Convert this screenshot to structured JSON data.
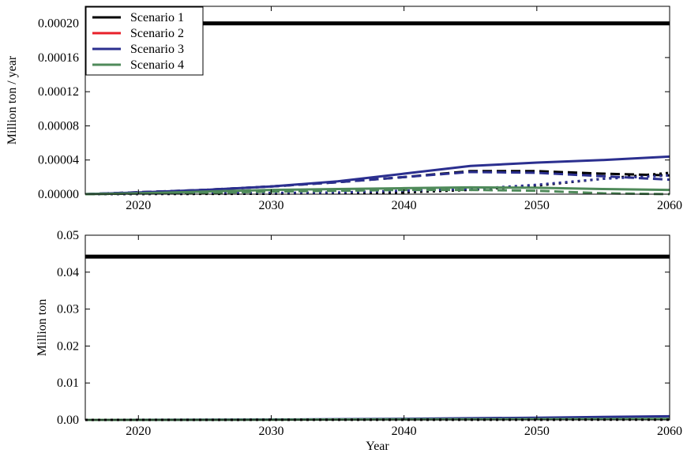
{
  "colors": {
    "scenario1": "#000000",
    "scenario2": "#e8202a",
    "scenario3": "#2b2f8f",
    "scenario4": "#4f8a5a",
    "axis": "#000000"
  },
  "chart_data": [
    {
      "type": "line",
      "ylabel": "Million ton / year",
      "xlabel": "",
      "xlim": [
        2016,
        2060
      ],
      "ylim": [
        0,
        0.00022
      ],
      "x_ticks": [
        2020,
        2030,
        2040,
        2050,
        2060
      ],
      "x_tick_labels": [
        "2020",
        "2030",
        "2040",
        "2050",
        "2060"
      ],
      "y_ticks": [
        0,
        4e-05,
        8e-05,
        0.00012,
        0.00016,
        0.0002
      ],
      "y_tick_labels": [
        "0.00000",
        "0.00004",
        "0.00008",
        "0.00012",
        "0.00016",
        "0.00020"
      ],
      "legend": {
        "position": "top-left",
        "entries": [
          {
            "label": "Scenario 1",
            "color_key": "scenario1"
          },
          {
            "label": "Scenario 2",
            "color_key": "scenario2"
          },
          {
            "label": "Scenario 3",
            "color_key": "scenario3"
          },
          {
            "label": "Scenario 4",
            "color_key": "scenario4"
          }
        ]
      },
      "series": [
        {
          "color_key": "scenario1",
          "style": "thick",
          "x": [
            2016,
            2060
          ],
          "y": [
            0.0002,
            0.0002
          ]
        },
        {
          "color_key": "scenario1",
          "style": "dashed",
          "x": [
            2016,
            2025,
            2030,
            2035,
            2040,
            2045,
            2050,
            2055,
            2060
          ],
          "y": [
            0,
            5e-06,
            9e-06,
            1.4e-05,
            2e-05,
            2.7e-05,
            2.7e-05,
            2.4e-05,
            2.2e-05
          ]
        },
        {
          "color_key": "scenario1",
          "style": "dotted",
          "x": [
            2016,
            2030,
            2040,
            2045,
            2050,
            2055,
            2060
          ],
          "y": [
            0,
            5e-07,
            2e-06,
            5e-06,
            1e-05,
            1.8e-05,
            2.5e-05
          ]
        },
        {
          "color_key": "scenario3",
          "style": "solid",
          "x": [
            2016,
            2020,
            2025,
            2030,
            2035,
            2040,
            2045,
            2050,
            2055,
            2060
          ],
          "y": [
            0,
            2e-06,
            5e-06,
            9e-06,
            1.5e-05,
            2.4e-05,
            3.3e-05,
            3.7e-05,
            4e-05,
            4.4e-05
          ]
        },
        {
          "color_key": "scenario3",
          "style": "dashed",
          "x": [
            2016,
            2025,
            2030,
            2035,
            2040,
            2045,
            2050,
            2055,
            2060
          ],
          "y": [
            0,
            5e-06,
            9e-06,
            1.4e-05,
            2e-05,
            2.6e-05,
            2.5e-05,
            2.1e-05,
            1.7e-05
          ]
        },
        {
          "color_key": "scenario3",
          "style": "dotted",
          "x": [
            2016,
            2035,
            2045,
            2050,
            2055,
            2060
          ],
          "y": [
            0,
            2e-06,
            6e-06,
            1.1e-05,
            1.8e-05,
            2.2e-05
          ]
        },
        {
          "color_key": "scenario4",
          "style": "solid",
          "x": [
            2016,
            2020,
            2025,
            2030,
            2035,
            2040,
            2045,
            2050,
            2055,
            2060
          ],
          "y": [
            0,
            1e-06,
            3e-06,
            5e-06,
            6e-06,
            7e-06,
            8e-06,
            7.5e-06,
            6e-06,
            5e-06
          ]
        },
        {
          "color_key": "scenario4",
          "style": "dashed",
          "x": [
            2016,
            2025,
            2030,
            2035,
            2040,
            2045,
            2050,
            2055,
            2060
          ],
          "y": [
            0,
            1.5e-06,
            3e-06,
            4e-06,
            5e-06,
            5e-06,
            4e-06,
            1e-06,
            0
          ]
        }
      ]
    },
    {
      "type": "line",
      "ylabel": "Million ton",
      "xlabel": "Year",
      "xlim": [
        2016,
        2060
      ],
      "ylim": [
        0,
        0.05
      ],
      "x_ticks": [
        2020,
        2030,
        2040,
        2050,
        2060
      ],
      "x_tick_labels": [
        "2020",
        "2030",
        "2040",
        "2050",
        "2060"
      ],
      "y_ticks": [
        0,
        0.01,
        0.02,
        0.03,
        0.04,
        0.05
      ],
      "y_tick_labels": [
        "0.00",
        "0.01",
        "0.02",
        "0.03",
        "0.04",
        "0.05"
      ],
      "series": [
        {
          "color_key": "scenario1",
          "style": "thick",
          "x": [
            2016,
            2060
          ],
          "y": [
            0.0442,
            0.0442
          ]
        },
        {
          "color_key": "scenario3",
          "style": "solid",
          "x": [
            2016,
            2030,
            2040,
            2050,
            2060
          ],
          "y": [
            0,
            0.0001,
            0.0003,
            0.0006,
            0.001
          ]
        },
        {
          "color_key": "scenario4",
          "style": "solid",
          "x": [
            2016,
            2030,
            2040,
            2050,
            2060
          ],
          "y": [
            0,
            5e-05,
            0.00015,
            0.0002,
            0.0003
          ]
        },
        {
          "color_key": "scenario1",
          "style": "dotted",
          "x": [
            2016,
            2060
          ],
          "y": [
            0,
            5e-05
          ]
        }
      ]
    }
  ]
}
